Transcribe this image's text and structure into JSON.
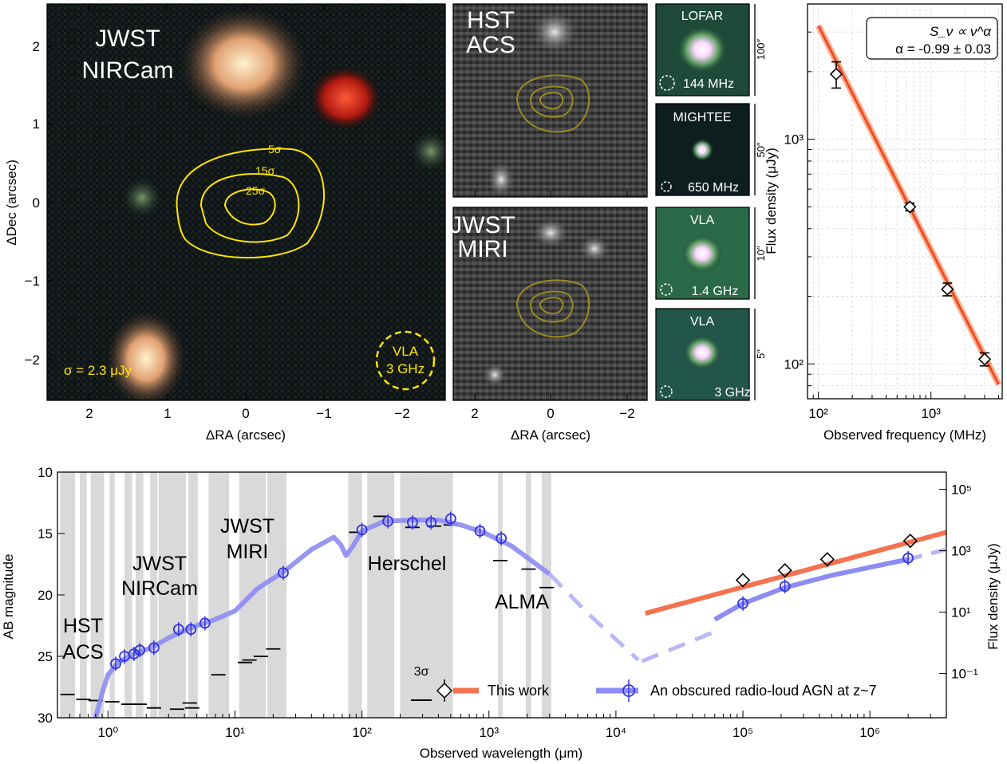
{
  "panel_a": {
    "title_line1": "JWST",
    "title_line2": "NIRCam",
    "sigma_note": "σ = 2.3 μJy",
    "beam_line1": "VLA",
    "beam_line2": "3 GHz",
    "contour_labels": [
      "5σ",
      "15σ",
      "25σ"
    ],
    "xlabel": "ΔRA (arcsec)",
    "ylabel": "ΔDec (arcsec)",
    "xticks": [
      "2",
      "1",
      "0",
      "−1",
      "−2"
    ],
    "yticks": [
      "2",
      "1",
      "0",
      "−1",
      "−2"
    ]
  },
  "panel_b": {
    "hst_line1": "HST",
    "hst_line2": "ACS",
    "miri_line1": "JWST",
    "miri_line2": "MIRI",
    "xlabel": "ΔRA (arcsec)",
    "xticks": [
      "2",
      "0",
      "−2"
    ]
  },
  "panel_c": {
    "cutouts": [
      {
        "survey": "LOFAR",
        "freq": "144 MHz",
        "scale": "100″"
      },
      {
        "survey": "MIGHTEE",
        "freq": "650 MHz",
        "scale": "50″"
      },
      {
        "survey": "VLA",
        "freq": "1.4 GHz",
        "scale": "10″"
      },
      {
        "survey": "VLA",
        "freq": "3 GHz",
        "scale": "5″"
      }
    ]
  },
  "chart_data": [
    {
      "type": "scatter",
      "title": "",
      "xlabel": "Observed frequency (MHz)",
      "ylabel": "Flux density (μJy)",
      "x_scale": "log",
      "y_scale": "log",
      "xlim": [
        80,
        4300
      ],
      "ylim": [
        70,
        4000
      ],
      "xtick_labels": [
        "10²",
        "10³"
      ],
      "ytick_labels": [
        "10²",
        "10³"
      ],
      "grid": true,
      "legend_box": {
        "line1": "S_ν ∝ ν^α",
        "line2": "α = -0.99 ± 0.03"
      },
      "points": [
        {
          "x": 144,
          "y": 1950,
          "err_low": 260,
          "err_high": 260
        },
        {
          "x": 650,
          "y": 500,
          "err_low": 20,
          "err_high": 20
        },
        {
          "x": 1400,
          "y": 215,
          "err_low": 14,
          "err_high": 14
        },
        {
          "x": 3000,
          "y": 105,
          "err_low": 7,
          "err_high": 7
        }
      ],
      "fit": {
        "x": [
          100,
          4000
        ],
        "y": [
          3200,
          81
        ]
      },
      "fit_color": "#f04a24"
    },
    {
      "type": "line",
      "title": "",
      "xlabel": "Observed wavelength (μm)",
      "ylabel": "AB magnitude",
      "y2label": "Flux density (μJy)",
      "x_scale": "log",
      "xlim": [
        0.4,
        4000000
      ],
      "ylim": [
        30,
        10
      ],
      "xtick_labels": [
        "10⁰",
        "10¹",
        "10²",
        "10³",
        "10⁴",
        "10⁵",
        "10⁶"
      ],
      "ytick_labels": [
        "10",
        "15",
        "20",
        "25",
        "30"
      ],
      "y2tick_labels": [
        "10⁵",
        "10³",
        "10¹",
        "10⁻¹"
      ],
      "band_labels": [
        {
          "text_lines": [
            "HST",
            "ACS"
          ]
        },
        {
          "text_lines": [
            "JWST",
            "NIRCam"
          ]
        },
        {
          "text_lines": [
            "JWST",
            "MIRI"
          ]
        },
        {
          "text_lines": [
            "Herschel"
          ]
        },
        {
          "text_lines": [
            "ALMA"
          ]
        }
      ],
      "filter_bands": [
        [
          0.42,
          0.55
        ],
        [
          0.6,
          0.68
        ],
        [
          0.73,
          0.93
        ],
        [
          1.03,
          1.13
        ],
        [
          1.35,
          1.55
        ],
        [
          1.65,
          1.9
        ],
        [
          2.15,
          2.45
        ],
        [
          2.5,
          4.1
        ],
        [
          4.3,
          5.1
        ],
        [
          6.2,
          9.0
        ],
        [
          10.8,
          17.5
        ],
        [
          18,
          25.5
        ],
        [
          78,
          100
        ],
        [
          110,
          180
        ],
        [
          200,
          300
        ],
        [
          300,
          520
        ],
        [
          1180,
          1280
        ],
        [
          1950,
          2150
        ],
        [
          2600,
          3100
        ]
      ],
      "upper_limits": [
        [
          0.48,
          28.1
        ],
        [
          0.64,
          28.5
        ],
        [
          0.8,
          28.6
        ],
        [
          1.08,
          28.7
        ],
        [
          1.45,
          28.9
        ],
        [
          1.78,
          28.9
        ],
        [
          2.3,
          29.2
        ],
        [
          3.5,
          29.3
        ],
        [
          4.6,
          29.2
        ],
        [
          4.4,
          28.8
        ],
        [
          7.4,
          26.5
        ],
        [
          12,
          25.5
        ],
        [
          13,
          25.3
        ],
        [
          16,
          25.0
        ],
        [
          20,
          24.4
        ],
        [
          90,
          14.9
        ],
        [
          140,
          13.6
        ],
        [
          250,
          14.5
        ],
        [
          370,
          14.4
        ],
        [
          500,
          14.3
        ],
        [
          1230,
          17.2
        ],
        [
          2050,
          17.9
        ],
        [
          2850,
          19.4
        ]
      ],
      "sigma_note": "3σ",
      "sed_points": [
        {
          "x": 1.15,
          "y": 25.6
        },
        {
          "x": 1.35,
          "y": 25.0
        },
        {
          "x": 1.6,
          "y": 24.8
        },
        {
          "x": 1.78,
          "y": 24.5
        },
        {
          "x": 2.3,
          "y": 24.3
        },
        {
          "x": 3.6,
          "y": 22.8
        },
        {
          "x": 4.5,
          "y": 22.8
        },
        {
          "x": 5.8,
          "y": 22.3
        },
        {
          "x": 24,
          "y": 18.2
        },
        {
          "x": 100,
          "y": 14.7
        },
        {
          "x": 160,
          "y": 14.0
        },
        {
          "x": 250,
          "y": 14.1
        },
        {
          "x": 350,
          "y": 14.1
        },
        {
          "x": 500,
          "y": 13.8
        },
        {
          "x": 850,
          "y": 14.8
        },
        {
          "x": 1250,
          "y": 15.4
        },
        {
          "x": 100000,
          "y": 20.7
        },
        {
          "x": 214000,
          "y": 19.3
        },
        {
          "x": 2000000,
          "y": 17.0
        }
      ],
      "sed_curve": [
        [
          0.8,
          30.0
        ],
        [
          0.9,
          28.0
        ],
        [
          1.0,
          26.5
        ],
        [
          1.2,
          25.5
        ],
        [
          1.6,
          24.8
        ],
        [
          2.2,
          24.3
        ],
        [
          3.0,
          23.5
        ],
        [
          4.0,
          22.9
        ],
        [
          5.0,
          22.5
        ],
        [
          7.0,
          22.0
        ],
        [
          10,
          21.3
        ],
        [
          15,
          19.5
        ],
        [
          25,
          18.0
        ],
        [
          40,
          16.3
        ],
        [
          60,
          15.3
        ],
        [
          68,
          15.9
        ],
        [
          75,
          16.8
        ],
        [
          85,
          16.0
        ],
        [
          100,
          14.8
        ],
        [
          150,
          14.0
        ],
        [
          250,
          13.9
        ],
        [
          400,
          13.9
        ],
        [
          600,
          14.3
        ],
        [
          900,
          14.9
        ],
        [
          1500,
          16.0
        ],
        [
          3000,
          18.3
        ]
      ],
      "sed_extrap_1": [
        [
          3000,
          18.3
        ],
        [
          6000,
          21.5
        ],
        [
          15000,
          25.3
        ]
      ],
      "sed_extrap_2": [
        [
          16000,
          25.4
        ],
        [
          60000,
          23.0
        ]
      ],
      "sed_radio": [
        [
          60000,
          22.0
        ],
        [
          100000,
          20.7
        ],
        [
          214000,
          19.4
        ],
        [
          500000,
          18.4
        ],
        [
          2000000,
          17.1
        ]
      ],
      "sed_radio_tail": [
        [
          2000000,
          17.1
        ],
        [
          4000000,
          16.3
        ]
      ],
      "this_work_points": [
        {
          "x": 100000,
          "y": 18.8
        },
        {
          "x": 214000,
          "y": 18.0
        },
        {
          "x": 462000,
          "y": 17.1
        },
        {
          "x": 2080000,
          "y": 15.6
        }
      ],
      "this_work_line": [
        [
          17000,
          21.5
        ],
        [
          4000000,
          14.9
        ]
      ],
      "series": [
        {
          "name": "This work",
          "color": "#f47250"
        },
        {
          "name": "An obscured radio-loud AGN at z~7",
          "color": "#8c8cf2"
        }
      ]
    }
  ]
}
